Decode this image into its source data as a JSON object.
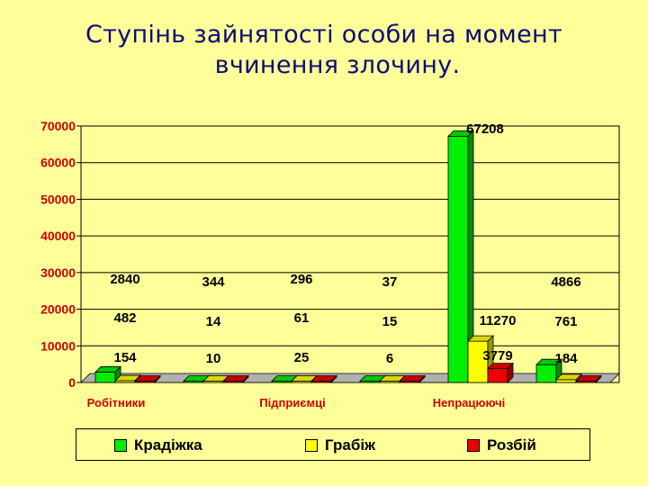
{
  "title": {
    "line1": "Ступінь зайнятості особи на момент",
    "line2": "вчинення злочину."
  },
  "chart_data": {
    "type": "bar",
    "title": "Ступінь зайнятості особи на момент вчинення злочину.",
    "categories": [
      "Робітники",
      "",
      "Підприємці",
      "",
      "Непрацюючі",
      ""
    ],
    "series": [
      {
        "name": "Крадіжка",
        "color": "#00ee00",
        "values": [
          2840,
          344,
          296,
          37,
          67208,
          4866
        ]
      },
      {
        "name": "Грабіж",
        "color": "#ffff00",
        "values": [
          482,
          14,
          61,
          15,
          11270,
          761
        ]
      },
      {
        "name": "Розбій",
        "color": "#ee0000",
        "values": [
          154,
          10,
          25,
          6,
          3779,
          184
        ]
      }
    ],
    "yticks": [
      "0",
      "10000",
      "20000",
      "30000",
      "40000",
      "50000",
      "60000",
      "70000"
    ],
    "ylim": [
      0,
      70000
    ],
    "grid": true,
    "legend_position": "bottom",
    "background": "#ffff99"
  }
}
